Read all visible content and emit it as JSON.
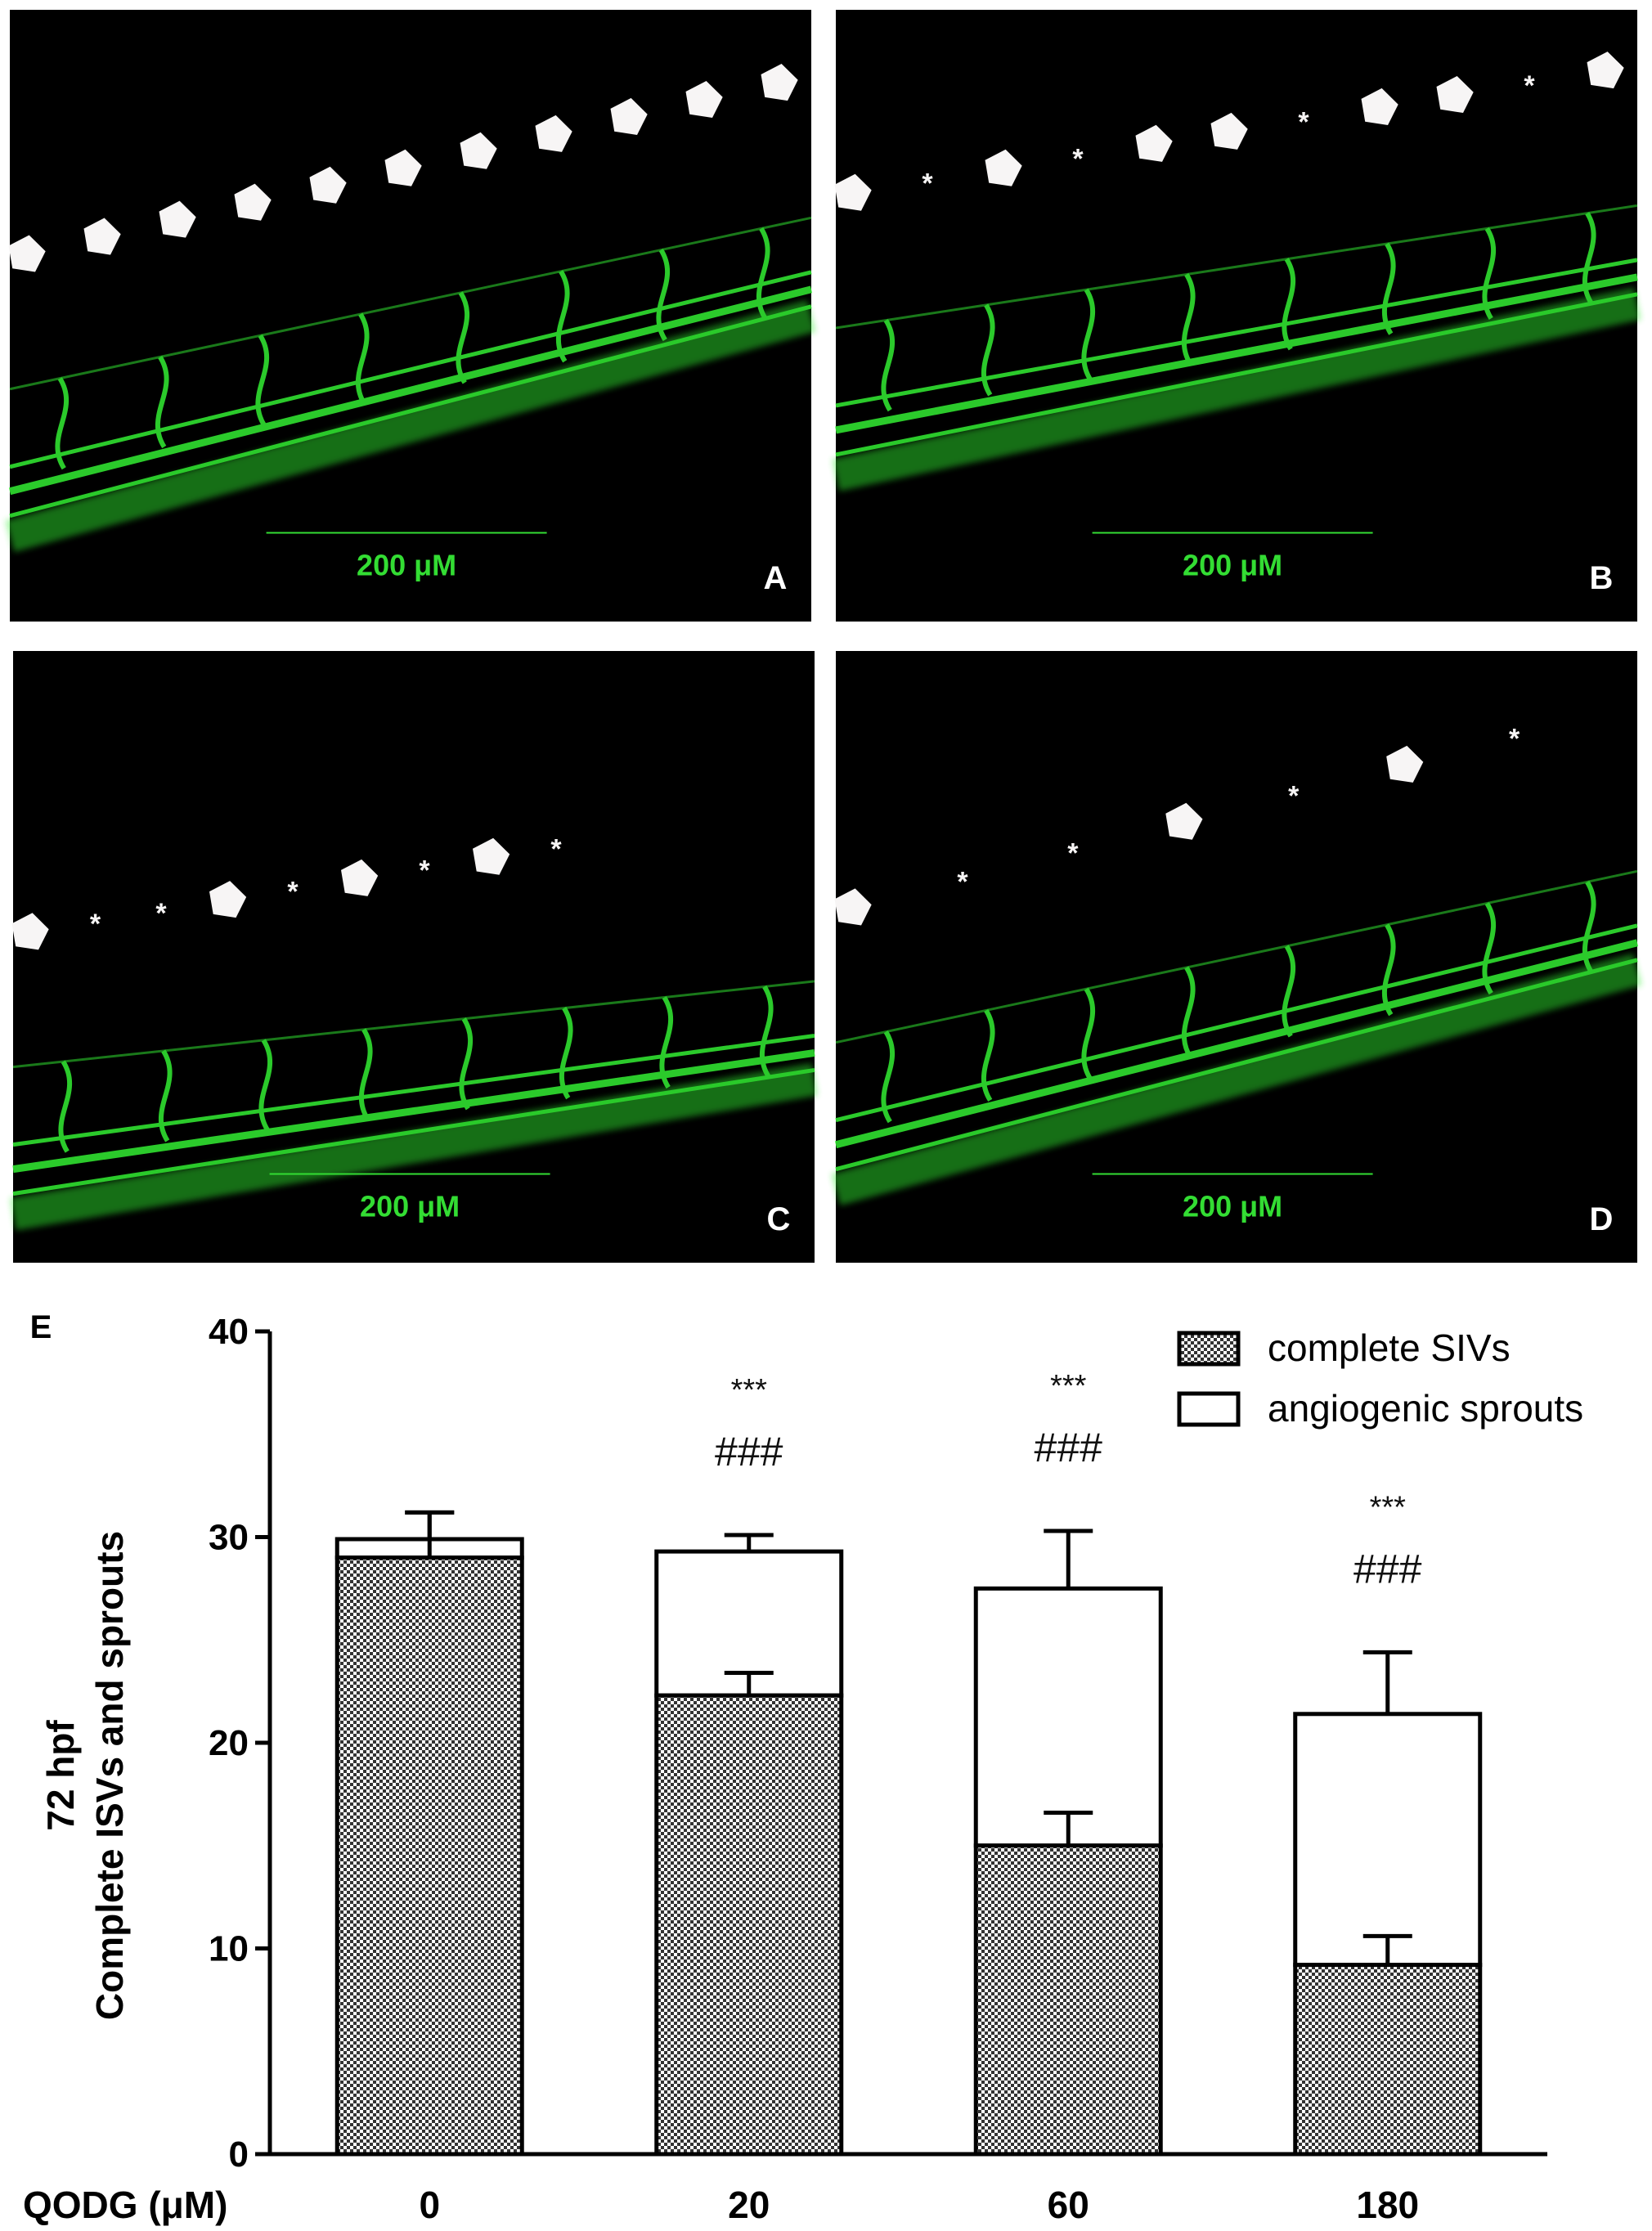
{
  "panels": [
    {
      "letter": "A",
      "scale_label": "200 μM",
      "pentagon_count": 11,
      "asterisk_count": 0
    },
    {
      "letter": "B",
      "scale_label": "200 μM",
      "pentagon_count": 7,
      "asterisk_count": 4
    },
    {
      "letter": "C",
      "scale_label": "200 μM",
      "pentagon_count": 4,
      "asterisk_count": 5
    },
    {
      "letter": "D",
      "scale_label": "200 μM",
      "pentagon_count": 3,
      "asterisk_count": 4
    }
  ],
  "colors": {
    "vessel": "#33ee33",
    "scale": "#33dd33",
    "panel_bg": "#000000",
    "marker": "#f7f5f5",
    "pattern_dark": "#333333",
    "significance": "#111111"
  },
  "chart_data": {
    "type": "bar",
    "stacked": true,
    "panel_letter": "E",
    "ylabel_line1": "72 hpf",
    "ylabel_line2": "Complete ISVs and sprouts",
    "xlabel": "QODG (μM)",
    "categories": [
      "0",
      "20",
      "60",
      "180"
    ],
    "ylim": [
      0,
      40
    ],
    "yticks": [
      0,
      10,
      20,
      30,
      40
    ],
    "series": [
      {
        "name": "complete SIVs",
        "pattern": "checkered",
        "values": [
          29,
          22.3,
          15,
          9.2
        ],
        "errors": [
          2.2,
          1.1,
          1.6,
          1.4
        ]
      },
      {
        "name": "angiogenic sprouts",
        "pattern": "white",
        "values": [
          0.9,
          7,
          12.5,
          12.2
        ],
        "errors": [
          1.3,
          0.8,
          2.8,
          3.0
        ]
      }
    ],
    "annotations": [
      {
        "category": "20",
        "line1": "***",
        "line2": "###"
      },
      {
        "category": "60",
        "line1": "***",
        "line2": "###"
      },
      {
        "category": "180",
        "line1": "***",
        "line2": "###"
      }
    ],
    "legend_position": "top-right",
    "grid": false
  }
}
